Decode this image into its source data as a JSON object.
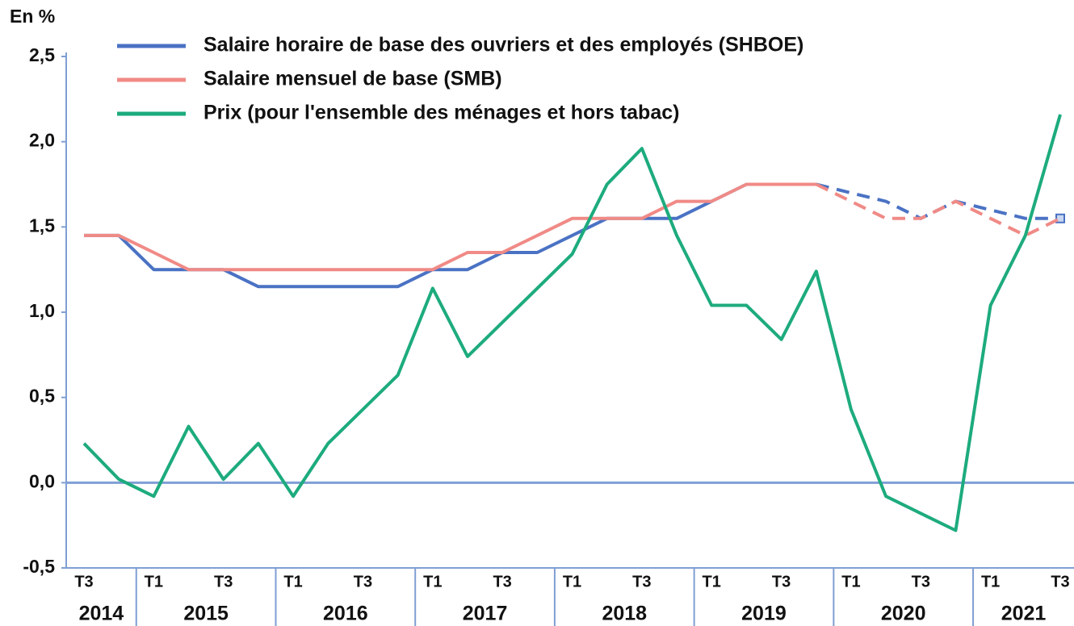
{
  "chart_data": {
    "type": "line",
    "y_label": "En %",
    "categories": [
      "T3",
      null,
      "T1",
      null,
      "T3",
      null,
      "T1",
      null,
      "T3",
      null,
      "T1",
      null,
      "T3",
      null,
      "T1",
      null,
      "T3",
      null,
      "T1",
      null,
      "T3",
      null,
      "T1",
      null,
      "T3",
      null,
      "T1",
      null,
      "T3"
    ],
    "years": [
      "2014",
      "2015",
      "2016",
      "2017",
      "2018",
      "2019",
      "2020",
      "2021"
    ],
    "series": [
      {
        "name": "Salaire horaire de base des ouvriers et des employés (SHBOE)",
        "color": "#4a72c4",
        "dashed_from_index": 21,
        "end_marker": true,
        "values": [
          1.45,
          1.45,
          1.25,
          1.25,
          1.25,
          1.15,
          1.15,
          1.15,
          1.15,
          1.15,
          1.25,
          1.25,
          1.35,
          1.35,
          1.45,
          1.55,
          1.55,
          1.55,
          1.65,
          1.75,
          1.75,
          1.75,
          1.7,
          1.65,
          1.55,
          1.65,
          1.6,
          1.55,
          1.55
        ]
      },
      {
        "name": "Salaire mensuel de base (SMB)",
        "color": "#f08a86",
        "dashed_from_index": 21,
        "values": [
          1.45,
          1.45,
          1.35,
          1.25,
          1.25,
          1.25,
          1.25,
          1.25,
          1.25,
          1.25,
          1.25,
          1.35,
          1.35,
          1.45,
          1.55,
          1.55,
          1.55,
          1.65,
          1.65,
          1.75,
          1.75,
          1.75,
          1.65,
          1.55,
          1.55,
          1.65,
          1.55,
          1.45,
          1.55
        ]
      },
      {
        "name": "Prix (pour l'ensemble des ménages et hors tabac)",
        "color": "#1dab7d",
        "values": [
          0.23,
          0.02,
          -0.08,
          0.33,
          0.02,
          0.23,
          -0.08,
          0.23,
          0.43,
          0.63,
          1.14,
          0.74,
          0.94,
          1.14,
          1.34,
          1.75,
          1.96,
          1.45,
          1.04,
          1.04,
          0.84,
          1.24,
          0.43,
          -0.08,
          -0.18,
          -0.28,
          1.04,
          1.45,
          2.16
        ]
      }
    ],
    "ylim": [
      -0.5,
      2.5
    ],
    "yticks": [
      {
        "value": -0.5,
        "label": "-0,5"
      },
      {
        "value": 0,
        "label": "0,0"
      },
      {
        "value": 0.5,
        "label": "0,5"
      },
      {
        "value": 1,
        "label": "1,0"
      },
      {
        "value": 1.5,
        "label": "1,5"
      },
      {
        "value": 2,
        "label": "2,0"
      },
      {
        "value": 2.5,
        "label": "2,5"
      }
    ],
    "zero_line": true,
    "legend": "top-left"
  }
}
